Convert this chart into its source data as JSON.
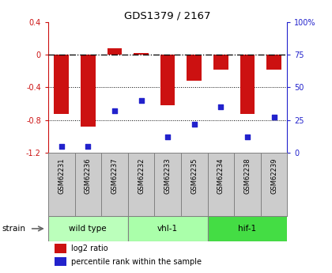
{
  "title": "GDS1379 / 2167",
  "samples": [
    "GSM62231",
    "GSM62236",
    "GSM62237",
    "GSM62232",
    "GSM62233",
    "GSM62235",
    "GSM62234",
    "GSM62238",
    "GSM62239"
  ],
  "log2_ratio": [
    -0.72,
    -0.88,
    0.08,
    0.02,
    -0.62,
    -0.32,
    -0.18,
    -0.72,
    -0.18
  ],
  "percentile_rank": [
    5,
    5,
    32,
    40,
    12,
    22,
    35,
    12,
    27
  ],
  "group_configs": [
    {
      "start": 0,
      "end": 2,
      "label": "wild type",
      "color": "#bbffbb"
    },
    {
      "start": 3,
      "end": 5,
      "label": "vhl-1",
      "color": "#aaffaa"
    },
    {
      "start": 6,
      "end": 8,
      "label": "hif-1",
      "color": "#44dd44"
    }
  ],
  "ylim_left": [
    -1.2,
    0.4
  ],
  "ylim_right": [
    0,
    100
  ],
  "bar_color": "#cc1111",
  "dot_color": "#2222cc",
  "bar_width": 0.55,
  "hline_y": 0,
  "dotted_lines": [
    -0.4,
    -0.8
  ],
  "right_ticks": [
    0,
    25,
    50,
    75,
    100
  ],
  "right_tick_labels": [
    "0",
    "25",
    "50",
    "75",
    "100%"
  ],
  "left_ticks": [
    -1.2,
    -0.8,
    -0.4,
    0.0,
    0.4
  ],
  "left_tick_labels": [
    "-1.2",
    "-0.8",
    "-0.4",
    "0",
    "0.4"
  ],
  "legend_items": [
    {
      "label": "log2 ratio",
      "color": "#cc1111"
    },
    {
      "label": "percentile rank within the sample",
      "color": "#2222cc"
    }
  ],
  "strain_label": "strain",
  "bg_color": "#ffffff",
  "plot_bg": "#ffffff",
  "tick_area_color": "#cccccc"
}
